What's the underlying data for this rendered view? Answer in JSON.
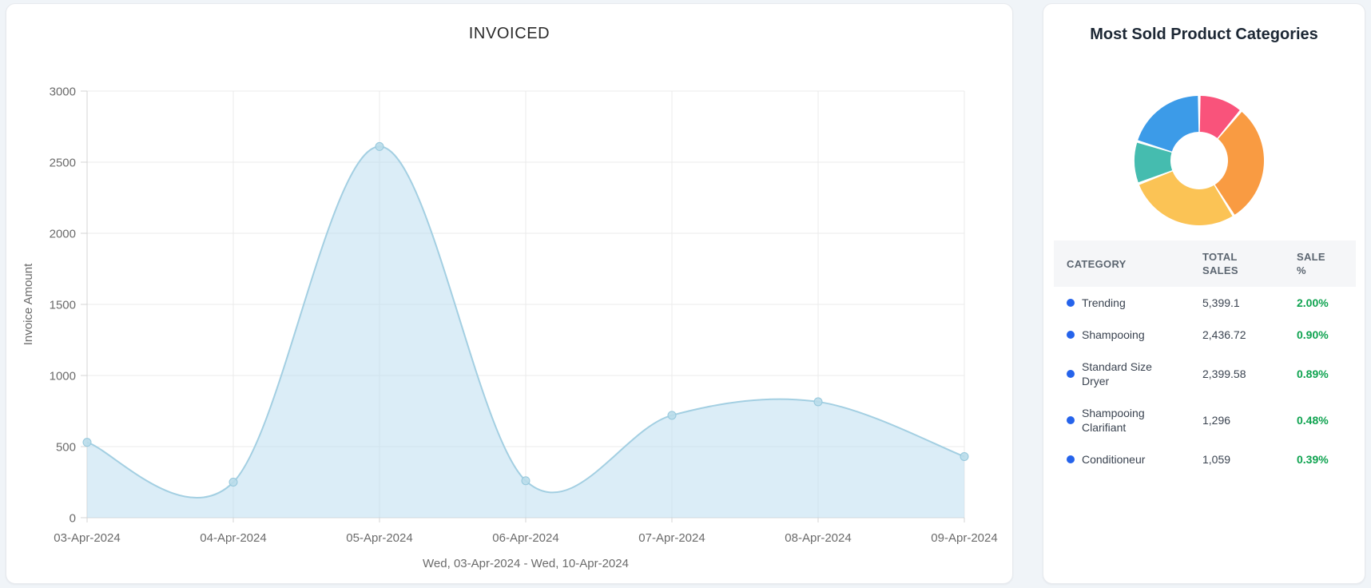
{
  "invoiced_card": {
    "title": "INVOICED",
    "y_axis_label": "Invoice Amount",
    "x_axis_title": "Wed, 03-Apr-2024 - Wed, 10-Apr-2024"
  },
  "categories_card": {
    "title": "Most Sold Product Categories",
    "table": {
      "headers": [
        "CATEGORY",
        "TOTAL SALES",
        "SALE %"
      ],
      "rows": [
        {
          "category": "Trending",
          "total_sales": "5,399.1",
          "sale_pct": "2.00%"
        },
        {
          "category": "Shampooing",
          "total_sales": "2,436.72",
          "sale_pct": "0.90%"
        },
        {
          "category": "Standard Size Dryer",
          "total_sales": "2,399.58",
          "sale_pct": "0.89%"
        },
        {
          "category": "Shampooing Clarifiant",
          "total_sales": "1,296",
          "sale_pct": "0.48%"
        },
        {
          "category": "Conditioneur",
          "total_sales": "1,059",
          "sale_pct": "0.39%"
        }
      ],
      "bullet_color": "#2563eb",
      "pct_color": "#0fa350"
    }
  },
  "chart_data": [
    {
      "type": "area",
      "title": "INVOICED",
      "x": [
        "03-Apr-2024",
        "04-Apr-2024",
        "05-Apr-2024",
        "06-Apr-2024",
        "07-Apr-2024",
        "08-Apr-2024",
        "09-Apr-2024"
      ],
      "values": [
        530,
        250,
        2610,
        260,
        720,
        815,
        430
      ],
      "xlabel": "Wed, 03-Apr-2024 - Wed, 10-Apr-2024",
      "ylabel": "Invoice Amount",
      "ylim": [
        0,
        3000
      ],
      "yticks": [
        0,
        500,
        1000,
        1500,
        2000,
        2500,
        3000
      ],
      "grid": true,
      "smooth": true,
      "line_color": "#a3cfe2",
      "fill_color": "#bedff0",
      "fill_opacity": 0.55,
      "point_fill": "#b9dcea",
      "point_stroke": "#96c8dc",
      "grid_color": "#ebebeb",
      "axis_color": "#d4d4d4",
      "tick_text_color": "#6b6b6b"
    },
    {
      "type": "pie",
      "donut": true,
      "title": "Most Sold Product Categories",
      "start_angle_deg": 0,
      "segments": [
        {
          "name": "segment-1",
          "percent": 11.1,
          "color": "#f9537b"
        },
        {
          "name": "segment-2",
          "percent": 30.0,
          "color": "#f99b42"
        },
        {
          "name": "segment-3",
          "percent": 28.1,
          "color": "#fbc355"
        },
        {
          "name": "segment-4",
          "percent": 10.6,
          "color": "#45bcaf"
        },
        {
          "name": "segment-5",
          "percent": 20.2,
          "color": "#3c9be8"
        }
      ]
    }
  ]
}
